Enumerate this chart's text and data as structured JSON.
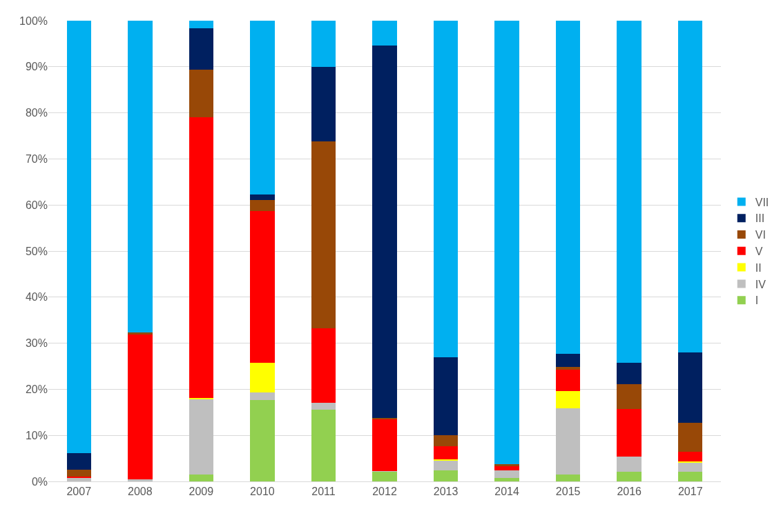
{
  "chart_data": {
    "type": "bar",
    "stacked": true,
    "categories": [
      "2007",
      "2008",
      "2009",
      "2010",
      "2011",
      "2012",
      "2013",
      "2014",
      "2015",
      "2016",
      "2017"
    ],
    "series": [
      {
        "name": "I",
        "color": "#92d050",
        "values": [
          0,
          0,
          1.5,
          17.6,
          15.5,
          2.1,
          2.4,
          0.8,
          1.5,
          2.1,
          2.1
        ]
      },
      {
        "name": "IV",
        "color": "#bfbfbf",
        "values": [
          0.7,
          0.5,
          16.4,
          1.7,
          1.5,
          0.2,
          2.1,
          1.6,
          14.4,
          3.3,
          2.0
        ]
      },
      {
        "name": "II",
        "color": "#ffff00",
        "values": [
          0,
          0,
          0.2,
          6.5,
          0,
          0,
          0.3,
          0,
          3.7,
          0,
          0.2
        ]
      },
      {
        "name": "V",
        "color": "#ff0000",
        "values": [
          0.3,
          31.4,
          60.9,
          32.9,
          16.3,
          11.2,
          2.8,
          0.9,
          4.6,
          10.3,
          2.1
        ]
      },
      {
        "name": "VI",
        "color": "#984807",
        "values": [
          1.6,
          0.4,
          10.4,
          2.4,
          40.5,
          0.3,
          2.4,
          0.5,
          0.6,
          5.4,
          6.4
        ]
      },
      {
        "name": "III",
        "color": "#002060",
        "values": [
          3.5,
          0,
          8.9,
          1.2,
          16.1,
          80.8,
          17.0,
          0,
          2.9,
          4.7,
          15.2
        ]
      },
      {
        "name": "VII",
        "color": "#00b0f0",
        "values": [
          93.9,
          67.7,
          1.7,
          37.7,
          10.1,
          5.4,
          73.0,
          96.2,
          72.3,
          74.2,
          72.0
        ]
      }
    ],
    "ylim": [
      0,
      100
    ],
    "yticks": [
      {
        "value": 0,
        "label": "0%"
      },
      {
        "value": 10,
        "label": "10%"
      },
      {
        "value": 20,
        "label": "20%"
      },
      {
        "value": 30,
        "label": "30%"
      },
      {
        "value": 40,
        "label": "40%"
      },
      {
        "value": 50,
        "label": "50%"
      },
      {
        "value": 60,
        "label": "60%"
      },
      {
        "value": 70,
        "label": "70%"
      },
      {
        "value": 80,
        "label": "80%"
      },
      {
        "value": 90,
        "label": "90%"
      },
      {
        "value": 100,
        "label": "100%"
      }
    ],
    "grid": "y",
    "legend": "right"
  }
}
